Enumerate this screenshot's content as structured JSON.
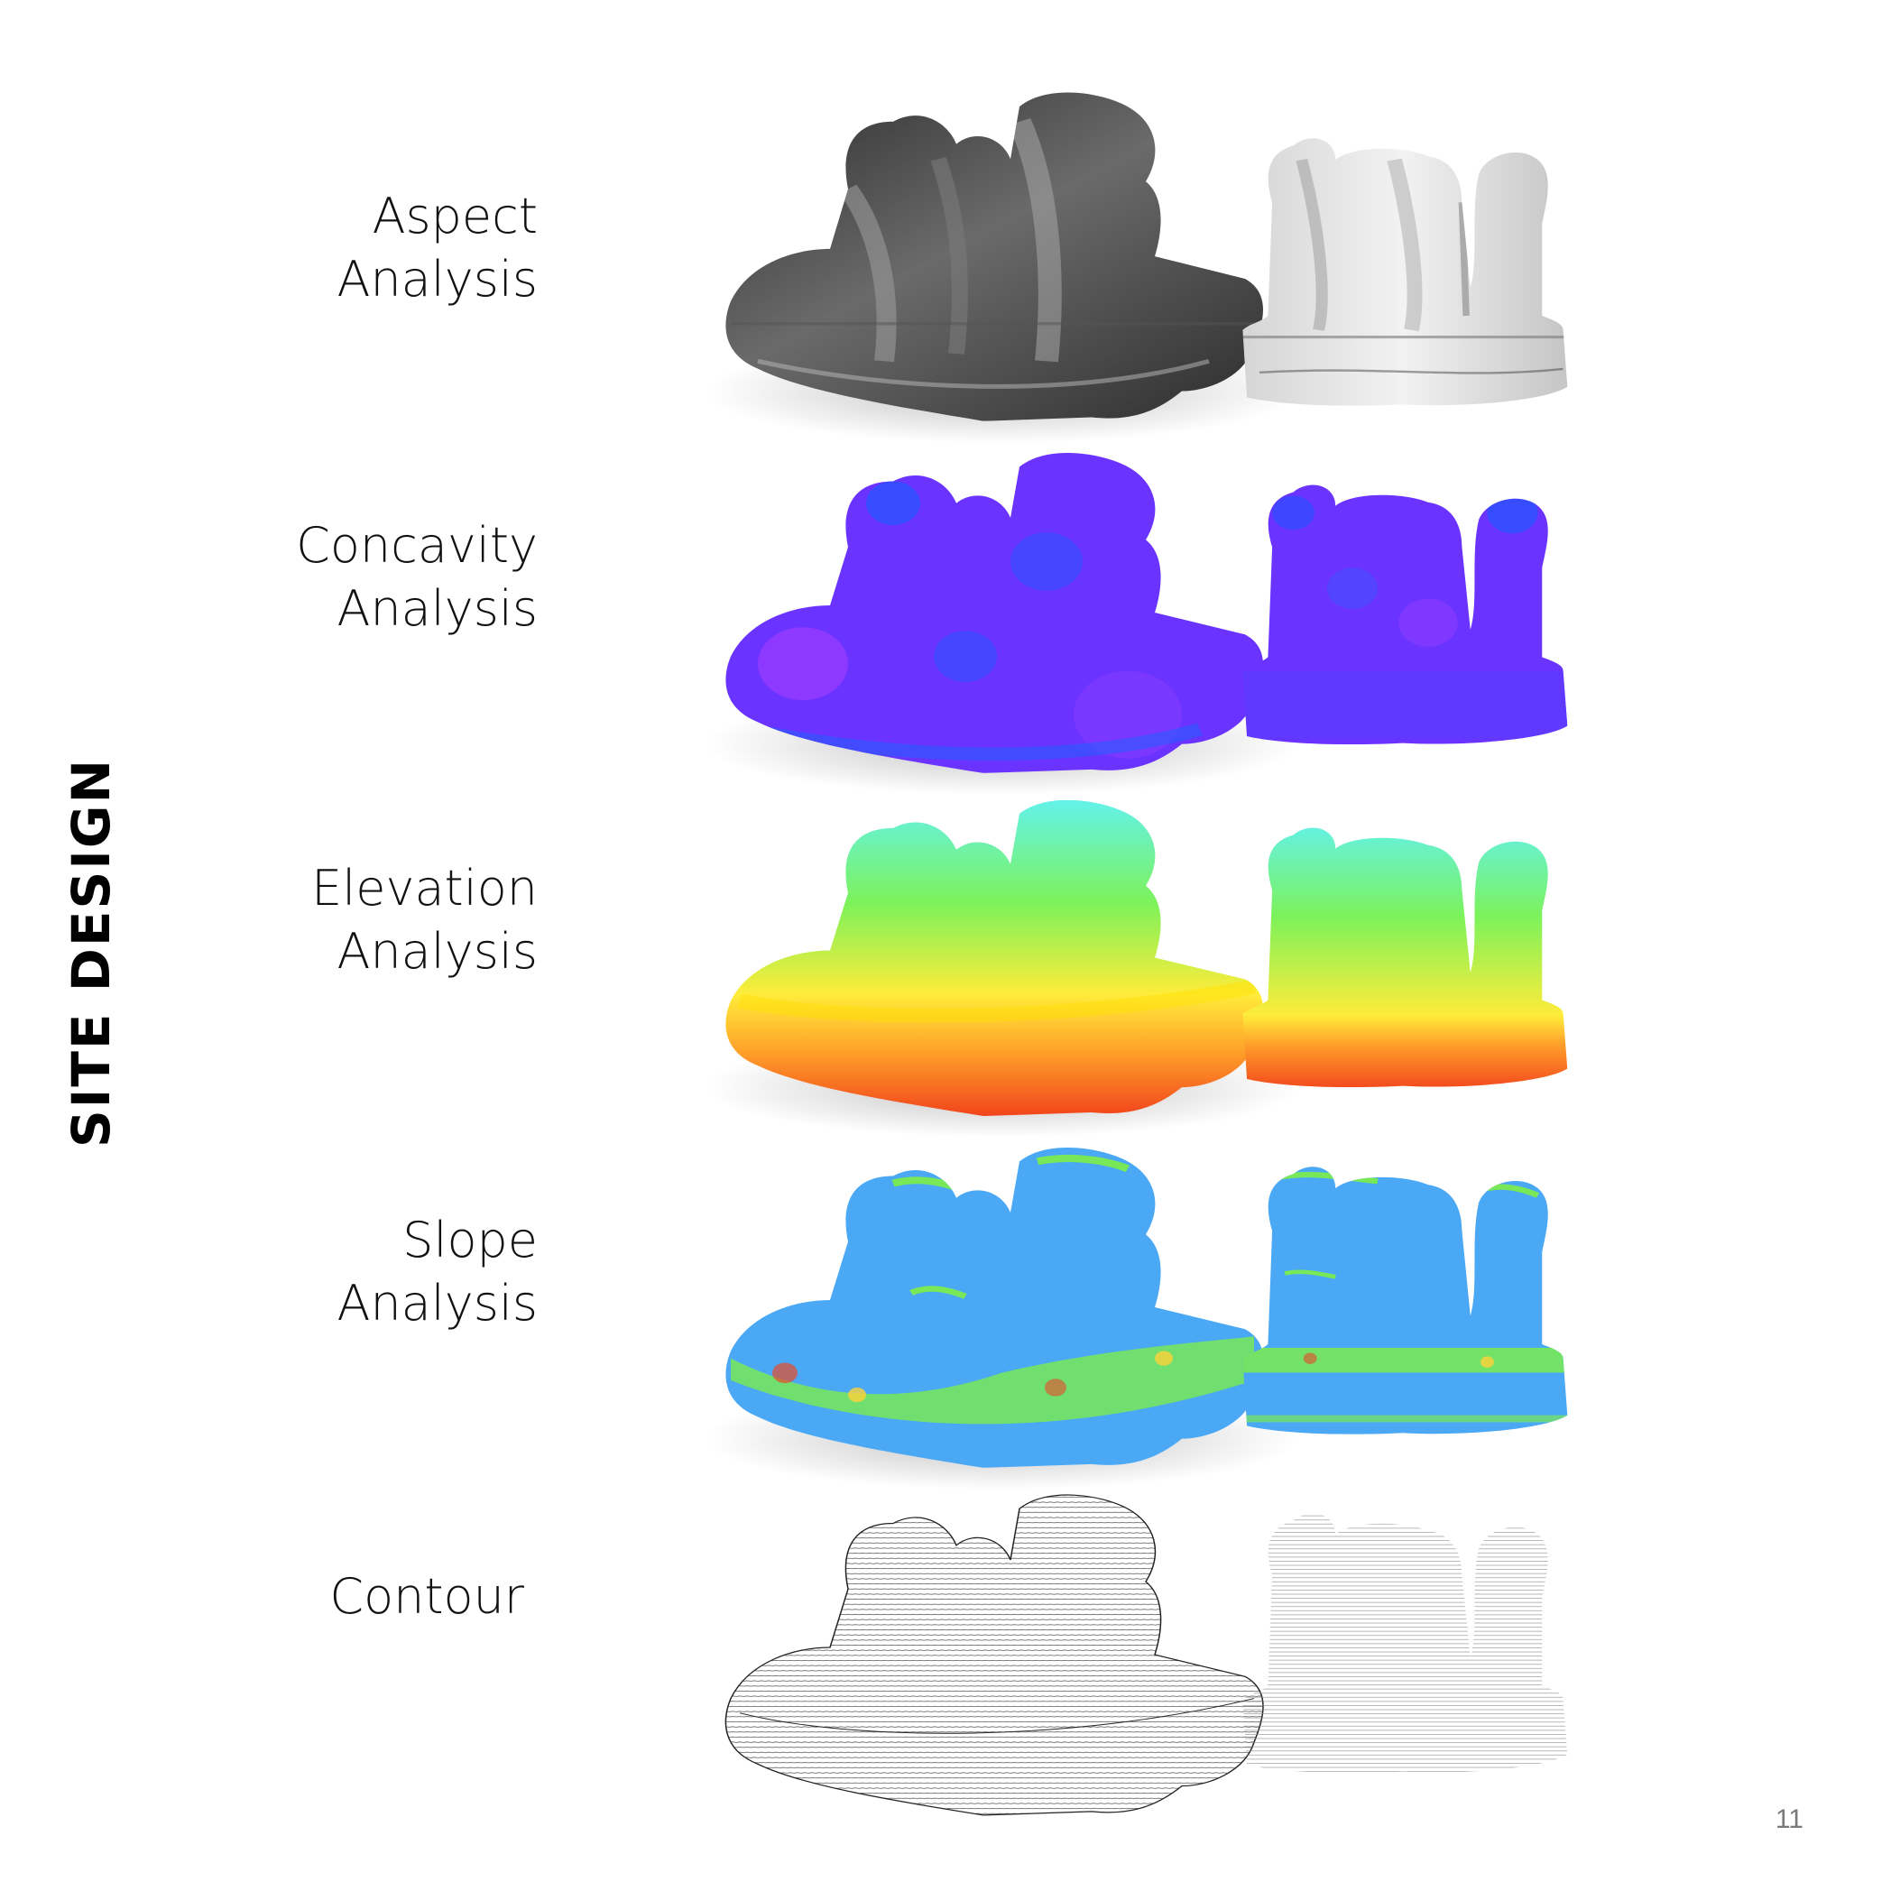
{
  "page": {
    "side_title": "SITE DESIGN",
    "page_number": "11"
  },
  "rows": [
    {
      "line1": "Aspect",
      "line2": "Analysis"
    },
    {
      "line1": "Concavity",
      "line2": "Analysis"
    },
    {
      "line1": "Elevation",
      "line2": "Analysis"
    },
    {
      "line1": "Slope",
      "line2": "Analysis"
    },
    {
      "line1": "Contour",
      "line2": ""
    }
  ],
  "renders": {
    "aspect": "grayscale shaded terrain model",
    "concavity": "purple-blue concavity map",
    "elevation": "red-yellow-green-cyan elevation gradient",
    "slope": "blue slope map with green-red patches",
    "contour": "black line contour model"
  },
  "colors": {
    "elevation_top": "#5ff2ff",
    "elevation_mid": "#7df25a",
    "elevation_low": "#ffec3a",
    "elevation_base": "#f03a1a",
    "concavity_main": "#6a33ff",
    "concavity_blue": "#2255ff",
    "slope_blue": "#4aa8f5",
    "slope_green": "#78e858"
  }
}
